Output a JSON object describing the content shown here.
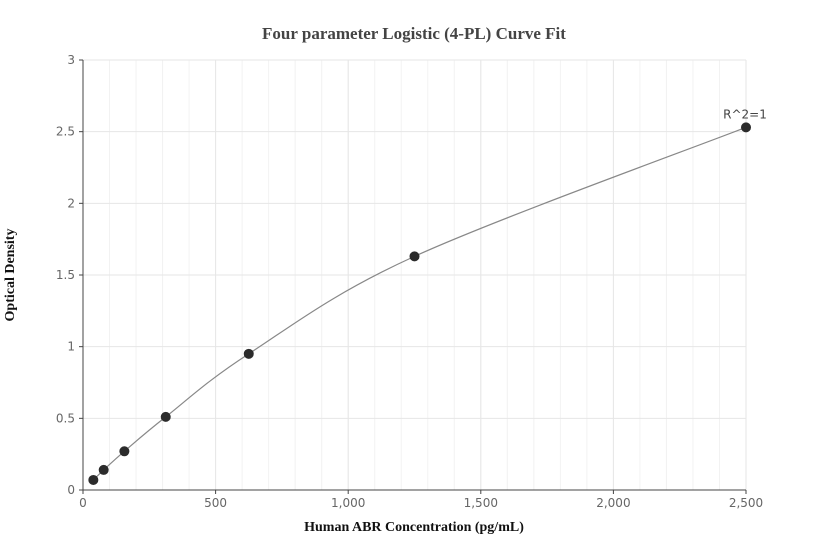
{
  "chart_data": {
    "type": "scatter",
    "title": "Four parameter Logistic (4-PL) Curve Fit",
    "xlabel": "Human ABR Concentration (pg/mL)",
    "ylabel": "Optical Density",
    "xlim": [
      0,
      2500
    ],
    "ylim": [
      0,
      3
    ],
    "x_ticks": [
      0,
      500,
      1000,
      1500,
      2000,
      2500
    ],
    "x_tick_labels": [
      "0",
      "500",
      "1,000",
      "1,500",
      "2,000",
      "2,500"
    ],
    "y_ticks": [
      0,
      0.5,
      1,
      1.5,
      2,
      2.5,
      3
    ],
    "y_tick_labels": [
      "0",
      "0.5",
      "1",
      "1.5",
      "2",
      "2.5",
      "3"
    ],
    "grid": true,
    "points": [
      {
        "x": 39,
        "y": 0.07
      },
      {
        "x": 78,
        "y": 0.14
      },
      {
        "x": 156,
        "y": 0.27
      },
      {
        "x": 312,
        "y": 0.51
      },
      {
        "x": 625,
        "y": 0.95
      },
      {
        "x": 1250,
        "y": 1.63
      },
      {
        "x": 2500,
        "y": 2.53
      }
    ],
    "annotation": "R^2=1",
    "colors": {
      "point": "#2b2b2b",
      "curve": "#888888",
      "grid": "#e6e6e6",
      "axis": "#444444"
    }
  }
}
